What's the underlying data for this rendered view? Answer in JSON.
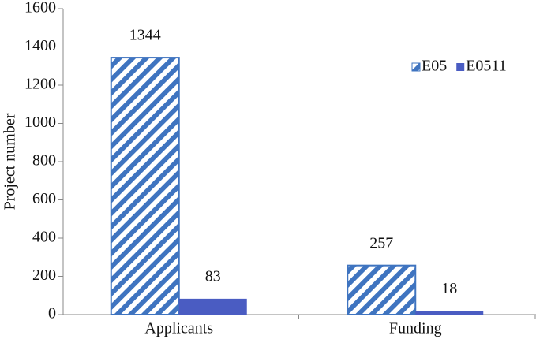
{
  "chart_data": {
    "type": "bar",
    "y_label": "Project number",
    "categories": [
      "Applicants",
      "Funding"
    ],
    "series": [
      {
        "name": "E05",
        "color": "#3f74c0",
        "hatch": true,
        "values": [
          1344,
          257
        ]
      },
      {
        "name": "E0511",
        "color": "#4a5cc2",
        "hatch": false,
        "values": [
          83,
          18
        ]
      }
    ],
    "ylim": [
      0,
      1600
    ],
    "yticks": [
      0,
      200,
      400,
      600,
      800,
      1000,
      1200,
      1400,
      1600
    ],
    "legend": "upper right"
  }
}
